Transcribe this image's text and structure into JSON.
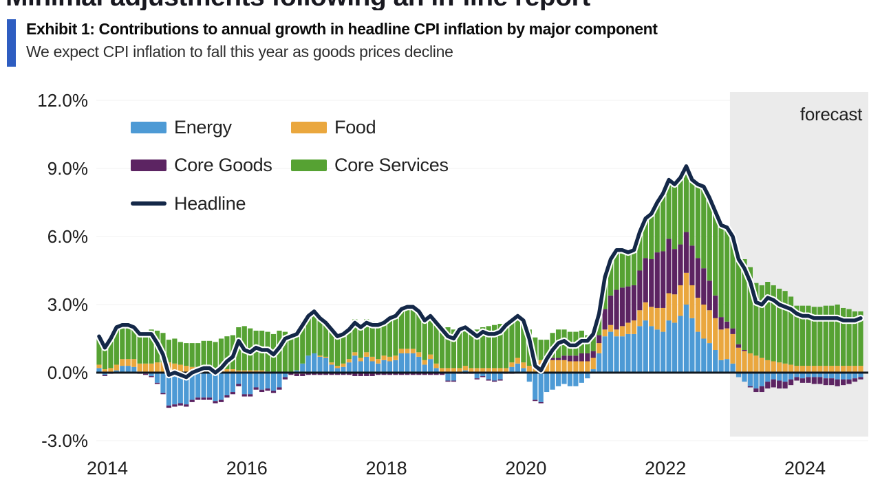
{
  "page": {
    "top_heading_partial": "Minimal adjustments following an in-line report"
  },
  "exhibit": {
    "label_title": "Exhibit 1: Contributions to annual growth in headline CPI inflation by major component",
    "subtitle": "We expect CPI inflation to fall this year as goods prices decline",
    "accent_color": "#2e5dc1"
  },
  "chart_data": {
    "type": "bar",
    "subtype": "stacked-monthly-bars-with-line-overlay",
    "title": "Contributions to annual growth in headline CPI inflation by major component",
    "unit": "percentage points, year-over-year",
    "x_start": "2014-01",
    "x_frequency": "monthly",
    "x_ticks": [
      {
        "year": 2014,
        "label": "2014"
      },
      {
        "year": 2016,
        "label": "2016"
      },
      {
        "year": 2018,
        "label": "2018"
      },
      {
        "year": 2020,
        "label": "2020"
      },
      {
        "year": 2022,
        "label": "2022"
      },
      {
        "year": 2024,
        "label": "2024"
      }
    ],
    "y_ticks": [
      {
        "value": 12,
        "label": "12.0%"
      },
      {
        "value": 9,
        "label": "9.0%"
      },
      {
        "value": 6,
        "label": "6.0%"
      },
      {
        "value": 3,
        "label": "3.0%"
      },
      {
        "value": 0,
        "label": "0.0%"
      },
      {
        "value": -3,
        "label": "-3.0%"
      }
    ],
    "ylim": [
      -3.0,
      12.0
    ],
    "grid": "faint horizontal",
    "grid_color": "#f5f5f5",
    "axis_color": "#101820",
    "legend_position": "top-left inside plot",
    "forecast": {
      "label": "forecast",
      "start": "2023-02",
      "shade_color": "#ebebeb"
    },
    "series": [
      {
        "name": "Energy",
        "type": "bar",
        "color": "#4d9ad5",
        "values": [
          0.2,
          -0.1,
          0,
          0.1,
          0.3,
          0.3,
          0.25,
          0.05,
          -0.05,
          -0.15,
          -0.45,
          -0.9,
          -1.45,
          -1.4,
          -1.35,
          -1.4,
          -1.2,
          -1.1,
          -1.1,
          -1.1,
          -1.25,
          -1.2,
          -1,
          -0.85,
          -0.5,
          -0.95,
          -0.95,
          -0.65,
          -0.75,
          -0.7,
          -0.8,
          -0.65,
          -0.2,
          0,
          0.1,
          0.4,
          0.75,
          0.85,
          0.7,
          0.65,
          0.35,
          0.2,
          0.25,
          0.45,
          0.75,
          0.5,
          0.7,
          0.5,
          0.4,
          0.55,
          0.5,
          0.55,
          0.85,
          0.85,
          0.85,
          0.7,
          0.35,
          0.6,
          0.2,
          0,
          -0.35,
          -0.35,
          0,
          0.1,
          0,
          -0.25,
          -0.15,
          -0.3,
          -0.35,
          -0.3,
          0,
          0.25,
          0.4,
          0.2,
          -0.4,
          -1.2,
          -1.3,
          -0.85,
          -0.75,
          -0.6,
          -0.5,
          -0.6,
          -0.6,
          -0.45,
          -0.25,
          0.15,
          0.85,
          1.6,
          1.8,
          1.6,
          1.6,
          1.7,
          1.7,
          2.05,
          2.3,
          2.05,
          1.9,
          1.8,
          2.3,
          2.2,
          2.5,
          3,
          2.4,
          1.8,
          1.5,
          1.3,
          1,
          0.55,
          0.6,
          0.4,
          -0.2,
          -0.4,
          -0.6,
          -0.7,
          -0.6,
          -0.4,
          -0.3,
          -0.35,
          -0.4,
          -0.3,
          -0.2,
          -0.25,
          -0.2,
          -0.2,
          -0.2,
          -0.25,
          -0.25,
          -0.3,
          -0.3,
          -0.3,
          -0.25,
          -0.2
        ]
      },
      {
        "name": "Food",
        "type": "bar",
        "color": "#eaa73e",
        "values": [
          0.15,
          0.15,
          0.2,
          0.25,
          0.3,
          0.3,
          0.35,
          0.35,
          0.4,
          0.4,
          0.45,
          0.45,
          0.45,
          0.4,
          0.35,
          0.3,
          0.25,
          0.25,
          0.2,
          0.2,
          0.2,
          0.2,
          0.15,
          0.15,
          0.1,
          0.1,
          0.1,
          0.1,
          0.1,
          0.05,
          0,
          0,
          0,
          0,
          -0.05,
          -0.05,
          0,
          0,
          0.05,
          0.05,
          0.1,
          0.1,
          0.15,
          0.15,
          0.15,
          0.15,
          0.2,
          0.2,
          0.2,
          0.2,
          0.2,
          0.2,
          0.2,
          0.2,
          0.2,
          0.2,
          0.2,
          0.2,
          0.2,
          0.2,
          0.2,
          0.2,
          0.2,
          0.2,
          0.2,
          0.2,
          0.2,
          0.2,
          0.2,
          0.2,
          0.2,
          0.2,
          0.25,
          0.25,
          0.3,
          0.45,
          0.55,
          0.6,
          0.55,
          0.55,
          0.55,
          0.5,
          0.5,
          0.5,
          0.5,
          0.5,
          0.45,
          0.3,
          0.3,
          0.3,
          0.45,
          0.5,
          0.6,
          0.7,
          0.8,
          0.85,
          0.95,
          1.05,
          1.2,
          1.25,
          1.35,
          1.4,
          1.45,
          1.5,
          1.5,
          1.45,
          1.4,
          1.35,
          1.35,
          1.3,
          1.1,
          0.95,
          0.85,
          0.75,
          0.65,
          0.55,
          0.5,
          0.45,
          0.4,
          0.35,
          0.3,
          0.3,
          0.3,
          0.3,
          0.3,
          0.3,
          0.3,
          0.3,
          0.3,
          0.3,
          0.3,
          0.3
        ]
      },
      {
        "name": "Core Goods",
        "type": "bar",
        "color": "#5c2462",
        "values": [
          0,
          -0.05,
          -0.05,
          0,
          0,
          0,
          0,
          -0.05,
          -0.05,
          -0.05,
          -0.05,
          -0.05,
          -0.1,
          -0.1,
          -0.1,
          -0.1,
          -0.1,
          -0.1,
          -0.1,
          -0.1,
          -0.1,
          -0.1,
          -0.1,
          -0.1,
          -0.1,
          -0.1,
          -0.1,
          -0.1,
          -0.1,
          -0.1,
          -0.1,
          -0.1,
          -0.1,
          -0.1,
          -0.1,
          -0.1,
          -0.1,
          -0.1,
          -0.1,
          -0.1,
          -0.1,
          -0.1,
          -0.1,
          -0.1,
          -0.15,
          -0.15,
          -0.15,
          -0.15,
          -0.1,
          -0.1,
          -0.1,
          -0.1,
          -0.1,
          -0.1,
          -0.1,
          -0.1,
          -0.1,
          -0.1,
          -0.1,
          -0.1,
          -0.05,
          -0.05,
          -0.05,
          -0.05,
          -0.05,
          -0.05,
          -0.05,
          -0.05,
          -0.05,
          -0.05,
          -0.05,
          -0.05,
          0,
          0,
          0,
          -0.05,
          -0.05,
          0,
          0.1,
          0.1,
          0.2,
          0.25,
          0.25,
          0.35,
          0.35,
          0.3,
          0.35,
          0.9,
          1.3,
          1.75,
          1.7,
          1.6,
          1.55,
          1.75,
          1.95,
          2.1,
          2.45,
          2.5,
          2.4,
          2,
          1.8,
          1.8,
          1.75,
          1.75,
          1.6,
          1.3,
          1,
          0.55,
          0.3,
          0.25,
          0.15,
          0.05,
          -0.05,
          -0.15,
          -0.25,
          -0.3,
          -0.35,
          -0.35,
          -0.3,
          -0.25,
          -0.15,
          -0.2,
          -0.25,
          -0.3,
          -0.3,
          -0.3,
          -0.3,
          -0.3,
          -0.25,
          -0.2,
          -0.15,
          -0.1
        ]
      },
      {
        "name": "Core Services",
        "type": "bar",
        "color": "#56a233",
        "values": [
          1.25,
          1.1,
          1.35,
          1.65,
          1.5,
          1.5,
          1.4,
          1.35,
          1.4,
          1.5,
          1.4,
          1.3,
          1,
          1.1,
          1,
          1,
          1.05,
          1.05,
          1.2,
          1.2,
          1.15,
          1.3,
          1.45,
          1.5,
          1.9,
          1.95,
          1.85,
          1.75,
          1.75,
          1.75,
          1.7,
          1.85,
          1.8,
          1.7,
          1.75,
          1.85,
          1.85,
          1.95,
          1.75,
          1.6,
          1.55,
          1.4,
          1.4,
          1.4,
          1.45,
          1.5,
          1.45,
          1.55,
          1.6,
          1.55,
          1.8,
          1.85,
          1.85,
          1.95,
          1.95,
          1.9,
          1.85,
          1.8,
          1.9,
          1.8,
          1.8,
          1.7,
          1.75,
          1.75,
          1.65,
          1.7,
          1.8,
          1.85,
          1.9,
          1.95,
          1.95,
          1.9,
          1.85,
          1.85,
          1.6,
          1.1,
          0.9,
          0.85,
          1.1,
          1.25,
          1.15,
          1.05,
          1.05,
          1,
          0.8,
          0.75,
          0.95,
          1.4,
          1.6,
          1.75,
          1.65,
          1.5,
          1.55,
          1.7,
          1.75,
          2,
          2.2,
          2.55,
          2.6,
          2.85,
          2.95,
          2.9,
          2.9,
          3.25,
          3.6,
          3.65,
          3.7,
          4.05,
          4.15,
          4.05,
          3.95,
          4,
          3.8,
          3.2,
          3.2,
          3.45,
          3.35,
          3.25,
          3.2,
          3,
          2.65,
          2.65,
          2.65,
          2.6,
          2.6,
          2.65,
          2.65,
          2.7,
          2.55,
          2.5,
          2.4,
          2.4
        ]
      },
      {
        "name": "Headline",
        "type": "line",
        "color": "#142848",
        "values": [
          1.6,
          1.1,
          1.5,
          2,
          2.1,
          2.1,
          2,
          1.7,
          1.7,
          1.7,
          1.3,
          0.8,
          -0.1,
          0,
          -0.1,
          -0.2,
          0,
          0.1,
          0.2,
          0.2,
          0,
          0.2,
          0.5,
          0.7,
          1.4,
          1,
          0.9,
          1.1,
          1,
          1,
          0.8,
          1.1,
          1.5,
          1.6,
          1.7,
          2.1,
          2.5,
          2.7,
          2.4,
          2.2,
          1.9,
          1.6,
          1.7,
          1.9,
          2.2,
          2,
          2.2,
          2.1,
          2.1,
          2.2,
          2.4,
          2.5,
          2.8,
          2.9,
          2.9,
          2.7,
          2.3,
          2.5,
          2.2,
          1.9,
          1.6,
          1.5,
          1.9,
          2,
          1.8,
          1.6,
          1.8,
          1.7,
          1.7,
          1.8,
          2.1,
          2.3,
          2.5,
          2.3,
          1.5,
          0.3,
          0.1,
          0.6,
          1,
          1.3,
          1.4,
          1.2,
          1.2,
          1.4,
          1.4,
          1.7,
          2.6,
          4.2,
          5,
          5.4,
          5.4,
          5.3,
          5.4,
          6.2,
          6.8,
          7,
          7.5,
          7.9,
          8.5,
          8.3,
          8.6,
          9.1,
          8.5,
          8.3,
          8.2,
          7.7,
          7.1,
          6.5,
          6.4,
          6,
          5,
          4.6,
          4,
          3.1,
          3,
          3.3,
          3.2,
          3,
          2.9,
          2.8,
          2.6,
          2.5,
          2.5,
          2.4,
          2.4,
          2.4,
          2.4,
          2.4,
          2.3,
          2.3,
          2.3,
          2.4
        ]
      }
    ]
  }
}
